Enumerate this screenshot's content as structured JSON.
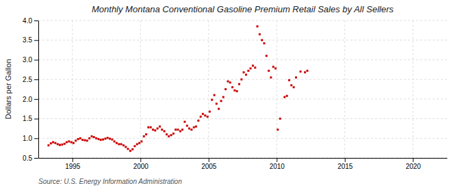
{
  "chart_data": {
    "type": "scatter",
    "title": "Monthly Montana Conventional Gasoline Premium Retail Sales by All Sellers",
    "y_label": "Dollars per Gallon",
    "annotations": [
      "Source: U.S. Energy Information Administration"
    ],
    "x": [
      1993.25,
      1993.42,
      1993.58,
      1993.75,
      1993.92,
      1994.08,
      1994.25,
      1994.42,
      1994.58,
      1994.75,
      1994.92,
      1995.08,
      1995.25,
      1995.42,
      1995.58,
      1995.75,
      1995.92,
      1996.08,
      1996.25,
      1996.42,
      1996.58,
      1996.75,
      1996.92,
      1997.08,
      1997.25,
      1997.42,
      1997.58,
      1997.75,
      1997.92,
      1998.08,
      1998.25,
      1998.42,
      1998.58,
      1998.75,
      1998.92,
      1999.08,
      1999.25,
      1999.42,
      1999.58,
      1999.75,
      1999.92,
      2000.08,
      2000.25,
      2000.42,
      2000.58,
      2000.75,
      2000.92,
      2001.08,
      2001.25,
      2001.42,
      2001.58,
      2001.75,
      2001.92,
      2002.08,
      2002.25,
      2002.42,
      2002.58,
      2002.75,
      2002.92,
      2003.08,
      2003.25,
      2003.42,
      2003.58,
      2003.75,
      2003.92,
      2004.08,
      2004.25,
      2004.42,
      2004.58,
      2004.75,
      2004.92,
      2005.08,
      2005.25,
      2005.42,
      2005.58,
      2005.75,
      2005.92,
      2006.08,
      2006.25,
      2006.42,
      2006.58,
      2006.75,
      2006.92,
      2007.08,
      2007.25,
      2007.42,
      2007.58,
      2007.75,
      2007.92,
      2008.08,
      2008.25,
      2008.42,
      2008.58,
      2008.75,
      2008.92,
      2009.08,
      2009.25,
      2009.42,
      2009.58,
      2009.75,
      2009.92,
      2010.08,
      2010.25,
      2010.58,
      2010.75,
      2010.92,
      2011.08,
      2011.25,
      2011.42,
      2011.75,
      2012.08,
      2012.25
    ],
    "values": [
      0.82,
      0.87,
      0.9,
      0.88,
      0.85,
      0.83,
      0.84,
      0.86,
      0.9,
      0.92,
      0.9,
      0.88,
      0.94,
      0.98,
      1.0,
      0.96,
      0.95,
      0.94,
      1.0,
      1.05,
      1.03,
      1.0,
      0.98,
      0.96,
      0.97,
      0.99,
      1.01,
      0.99,
      0.97,
      0.92,
      0.88,
      0.85,
      0.85,
      0.82,
      0.78,
      0.73,
      0.68,
      0.72,
      0.8,
      0.85,
      0.88,
      0.92,
      1.05,
      1.1,
      1.28,
      1.28,
      1.22,
      1.2,
      1.25,
      1.3,
      1.22,
      1.18,
      1.1,
      1.05,
      1.08,
      1.12,
      1.22,
      1.22,
      1.18,
      1.22,
      1.42,
      1.32,
      1.25,
      1.22,
      1.28,
      1.3,
      1.45,
      1.55,
      1.62,
      1.58,
      1.55,
      1.68,
      1.98,
      2.1,
      1.88,
      1.75,
      1.95,
      2.05,
      2.25,
      2.45,
      2.42,
      2.3,
      2.22,
      2.2,
      2.38,
      2.5,
      2.68,
      2.62,
      2.72,
      2.78,
      2.85,
      2.8,
      3.85,
      3.65,
      3.5,
      3.42,
      3.1,
      2.72,
      2.55,
      2.82,
      2.78,
      1.22,
      1.5,
      2.05,
      2.08,
      2.48,
      2.35,
      2.3,
      2.55,
      2.7,
      2.68,
      2.72
    ],
    "color": "#cc0000",
    "marker": "square",
    "xlim": [
      1992.5,
      2022.5
    ],
    "ylim": [
      0.5,
      4.0
    ],
    "xticks": [
      1995,
      2000,
      2005,
      2010,
      2015,
      2020
    ],
    "yticks": [
      0.5,
      {
        "value": 1.0,
        "label": "1.0"
      },
      1.5,
      {
        "value": 2.0,
        "label": "2.0"
      },
      2.5,
      {
        "value": 3.0,
        "label": "3.0"
      },
      3.5,
      {
        "value": 4.0,
        "label": "4.0"
      }
    ],
    "grid": true
  }
}
